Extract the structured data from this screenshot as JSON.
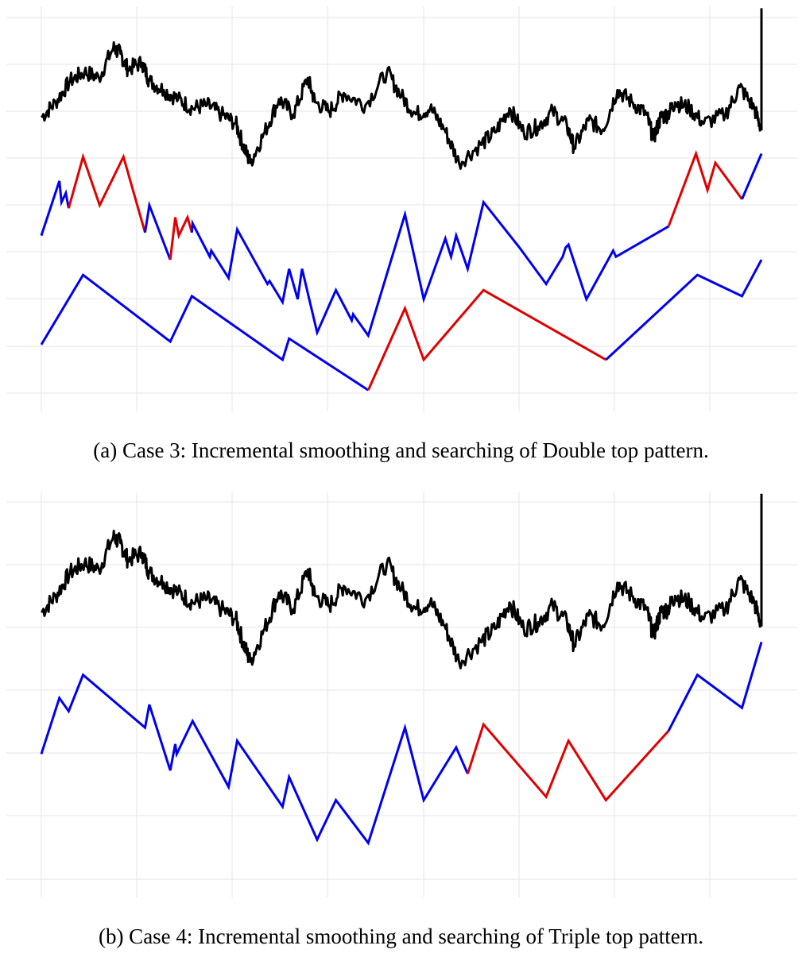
{
  "colors": {
    "price": "#000000",
    "smoothed": "#0000ee",
    "match": "#e00000",
    "grid": "#e6e6e6"
  },
  "chart_data": [
    {
      "type": "line",
      "caption": "(a) Case 3: Incremental smoothing and searching of Double top pattern.",
      "grid": true,
      "axis_ticks_shown": false,
      "series": [
        {
          "role": "price",
          "color": "#000000",
          "points": [
            [
              0,
              8.1
            ],
            [
              2,
              8.6
            ],
            [
              4,
              9.3
            ],
            [
              6,
              9.6
            ],
            [
              8,
              9.4
            ],
            [
              10,
              10.4
            ],
            [
              11,
              10.2
            ],
            [
              12,
              9.7
            ],
            [
              14,
              9.9
            ],
            [
              15,
              9.3
            ],
            [
              17,
              9.0
            ],
            [
              19,
              8.7
            ],
            [
              21,
              8.4
            ],
            [
              23,
              8.5
            ],
            [
              25,
              8.2
            ],
            [
              27,
              7.9
            ],
            [
              28,
              7.2
            ],
            [
              29,
              6.6
            ],
            [
              31,
              7.6
            ],
            [
              33,
              8.7
            ],
            [
              35,
              8.2
            ],
            [
              37,
              9.4
            ],
            [
              38,
              8.6
            ],
            [
              40,
              8.3
            ],
            [
              42,
              8.9
            ],
            [
              45,
              8.5
            ],
            [
              48,
              9.6
            ],
            [
              50,
              8.8
            ],
            [
              52,
              8.2
            ],
            [
              54,
              8.4
            ],
            [
              56,
              7.7
            ],
            [
              58,
              6.6
            ],
            [
              61,
              7.2
            ],
            [
              63,
              7.6
            ],
            [
              65,
              8.4
            ],
            [
              67,
              7.6
            ],
            [
              69,
              7.8
            ],
            [
              71,
              8.3
            ],
            [
              73,
              7.8
            ],
            [
              74,
              7.1
            ],
            [
              76,
              8.0
            ],
            [
              78,
              7.7
            ],
            [
              80,
              9.0
            ],
            [
              82,
              8.6
            ],
            [
              84,
              8.2
            ],
            [
              85,
              7.4
            ],
            [
              86,
              8.1
            ],
            [
              87,
              8.2
            ],
            [
              88,
              8.6
            ],
            [
              90,
              8.4
            ],
            [
              92,
              7.9
            ],
            [
              95,
              8.2
            ],
            [
              97,
              9.1
            ],
            [
              99,
              8.4
            ],
            [
              100,
              7.7
            ]
          ]
        },
        {
          "role": "smoothed",
          "color": "#0000ee",
          "segments": [
            {
              "match": false,
              "points": [
                [
                  0,
                  4.2
                ],
                [
                  2.5,
                  6.0
                ],
                [
                  2.8,
                  5.3
                ],
                [
                  3.4,
                  5.6
                ],
                [
                  3.8,
                  5.1
                ]
              ]
            },
            {
              "match": true,
              "points": [
                [
                  3.8,
                  5.1
                ],
                [
                  5.8,
                  6.8
                ],
                [
                  8.1,
                  5.2
                ],
                [
                  11.4,
                  6.8
                ],
                [
                  14.4,
                  4.3
                ]
              ]
            },
            {
              "match": false,
              "points": [
                [
                  14.4,
                  4.3
                ],
                [
                  15,
                  5.2
                ],
                [
                  17.9,
                  3.4
                ]
              ]
            },
            {
              "match": true,
              "points": [
                [
                  17.9,
                  3.4
                ],
                [
                  18.6,
                  4.8
                ],
                [
                  19.1,
                  4.2
                ],
                [
                  20.3,
                  4.8
                ],
                [
                  20.9,
                  4.3
                ]
              ]
            },
            {
              "match": false,
              "points": [
                [
                  20.9,
                  4.3
                ],
                [
                  21,
                  4.6
                ],
                [
                  23.4,
                  3.5
                ],
                [
                  23.6,
                  3.7
                ],
                [
                  26,
                  2.8
                ],
                [
                  27.2,
                  4.4
                ],
                [
                  31.4,
                  2.6
                ],
                [
                  31.7,
                  2.7
                ],
                [
                  33.5,
                  2.0
                ],
                [
                  34.4,
                  3.1
                ],
                [
                  35.6,
                  2.1
                ],
                [
                  36.2,
                  3.1
                ],
                [
                  38.3,
                  1.0
                ],
                [
                  40.9,
                  2.4
                ],
                [
                  43.1,
                  1.4
                ],
                [
                  43.3,
                  1.6
                ],
                [
                  45.4,
                  0.9
                ],
                [
                  50.5,
                  4.9
                ],
                [
                  53.1,
                  2.1
                ],
                [
                  56.1,
                  4.1
                ],
                [
                  56.9,
                  3.5
                ],
                [
                  57.6,
                  4.2
                ],
                [
                  59.2,
                  3.1
                ],
                [
                  61.4,
                  5.3
                ],
                [
                  66.4,
                  3.8
                ],
                [
                  70.1,
                  2.6
                ],
                [
                  72.4,
                  3.5
                ],
                [
                  72.8,
                  3.8
                ],
                [
                  73.2,
                  3.9
                ],
                [
                  75.7,
                  2.1
                ],
                [
                  79.4,
                  3.7
                ],
                [
                  79.8,
                  3.5
                ],
                [
                  87.1,
                  4.5
                ]
              ]
            },
            {
              "match": true,
              "points": [
                [
                  87.1,
                  4.5
                ],
                [
                  90.9,
                  6.9
                ],
                [
                  92.5,
                  5.7
                ],
                [
                  93.6,
                  6.6
                ],
                [
                  97.3,
                  5.4
                ]
              ]
            },
            {
              "match": false,
              "points": [
                [
                  97.3,
                  5.4
                ],
                [
                  100,
                  6.9
                ]
              ]
            }
          ]
        },
        {
          "role": "smoothed",
          "color": "#0000ee",
          "segments": [
            {
              "match": false,
              "points": [
                [
                  0,
                  0.6
                ],
                [
                  5.8,
                  2.9
                ],
                [
                  17.9,
                  0.7
                ],
                [
                  20.9,
                  2.2
                ],
                [
                  33.5,
                  0.1
                ],
                [
                  34.4,
                  0.8
                ],
                [
                  45.4,
                  -0.9
                ]
              ]
            },
            {
              "match": true,
              "points": [
                [
                  45.4,
                  -0.9
                ],
                [
                  50.5,
                  1.8
                ],
                [
                  53.1,
                  0.1
                ],
                [
                  61.4,
                  2.4
                ],
                [
                  78.4,
                  0.1
                ]
              ]
            },
            {
              "match": false,
              "points": [
                [
                  78.4,
                  0.1
                ],
                [
                  91.1,
                  2.9
                ],
                [
                  97.3,
                  2.2
                ],
                [
                  100,
                  3.4
                ]
              ]
            }
          ]
        }
      ]
    },
    {
      "type": "line",
      "caption": "(b) Case 4: Incremental smoothing and searching of Triple top pattern.",
      "grid": true,
      "axis_ticks_shown": false,
      "series": [
        {
          "role": "price",
          "color": "#000000",
          "points": [
            [
              0,
              8.1
            ],
            [
              2,
              8.6
            ],
            [
              4,
              9.3
            ],
            [
              6,
              9.6
            ],
            [
              8,
              9.4
            ],
            [
              10,
              10.4
            ],
            [
              11,
              10.2
            ],
            [
              12,
              9.7
            ],
            [
              14,
              9.9
            ],
            [
              15,
              9.3
            ],
            [
              17,
              9.0
            ],
            [
              19,
              8.7
            ],
            [
              21,
              8.4
            ],
            [
              23,
              8.5
            ],
            [
              25,
              8.2
            ],
            [
              27,
              7.9
            ],
            [
              28,
              7.2
            ],
            [
              29,
              6.6
            ],
            [
              31,
              7.6
            ],
            [
              33,
              8.7
            ],
            [
              35,
              8.2
            ],
            [
              37,
              9.4
            ],
            [
              38,
              8.6
            ],
            [
              40,
              8.3
            ],
            [
              42,
              8.9
            ],
            [
              45,
              8.5
            ],
            [
              48,
              9.6
            ],
            [
              50,
              8.8
            ],
            [
              52,
              8.2
            ],
            [
              54,
              8.4
            ],
            [
              56,
              7.7
            ],
            [
              58,
              6.6
            ],
            [
              61,
              7.2
            ],
            [
              63,
              7.6
            ],
            [
              65,
              8.4
            ],
            [
              67,
              7.6
            ],
            [
              69,
              7.8
            ],
            [
              71,
              8.3
            ],
            [
              73,
              7.8
            ],
            [
              74,
              7.1
            ],
            [
              76,
              8.0
            ],
            [
              78,
              7.7
            ],
            [
              80,
              9.0
            ],
            [
              82,
              8.6
            ],
            [
              84,
              8.2
            ],
            [
              85,
              7.4
            ],
            [
              86,
              8.1
            ],
            [
              87,
              8.2
            ],
            [
              88,
              8.6
            ],
            [
              90,
              8.4
            ],
            [
              92,
              7.9
            ],
            [
              95,
              8.2
            ],
            [
              97,
              9.1
            ],
            [
              99,
              8.4
            ],
            [
              100,
              7.7
            ]
          ]
        },
        {
          "role": "smoothed",
          "color": "#0000ee",
          "segments": [
            {
              "match": false,
              "points": [
                [
                  0,
                  3.8
                ],
                [
                  2.5,
                  5.5
                ],
                [
                  3.8,
                  5.1
                ],
                [
                  5.8,
                  6.2
                ],
                [
                  14.4,
                  4.6
                ],
                [
                  15,
                  5.3
                ],
                [
                  17.9,
                  3.3
                ],
                [
                  18.6,
                  4.1
                ],
                [
                  18.8,
                  3.8
                ],
                [
                  21,
                  4.8
                ],
                [
                  26,
                  2.8
                ],
                [
                  27.2,
                  4.2
                ],
                [
                  33.5,
                  2.2
                ],
                [
                  34.4,
                  3.1
                ],
                [
                  38.3,
                  1.2
                ],
                [
                  40.9,
                  2.4
                ],
                [
                  45.4,
                  1.1
                ],
                [
                  50.5,
                  4.6
                ],
                [
                  53.1,
                  2.4
                ],
                [
                  57.6,
                  4.0
                ],
                [
                  59.2,
                  3.2
                ]
              ]
            },
            {
              "match": true,
              "points": [
                [
                  59.2,
                  3.2
                ],
                [
                  61.4,
                  4.7
                ],
                [
                  70.1,
                  2.5
                ],
                [
                  73.2,
                  4.2
                ],
                [
                  78.4,
                  2.4
                ],
                [
                  87.1,
                  4.5
                ]
              ]
            },
            {
              "match": false,
              "points": [
                [
                  87.1,
                  4.5
                ],
                [
                  91.1,
                  6.2
                ],
                [
                  97.3,
                  5.2
                ],
                [
                  100,
                  7.2
                ]
              ]
            }
          ]
        }
      ]
    }
  ]
}
